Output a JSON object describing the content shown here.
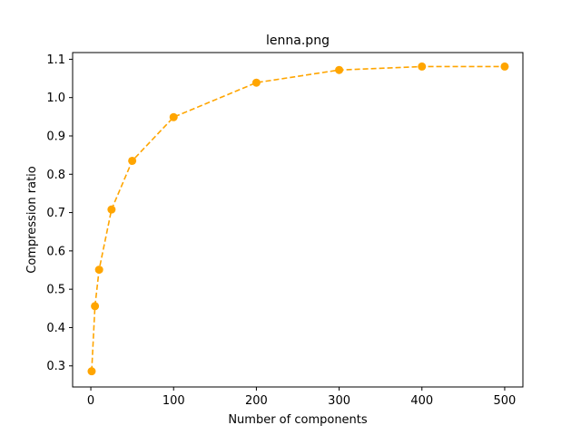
{
  "chart_data": {
    "type": "line",
    "title": "lenna.png",
    "xlabel": "Number of components",
    "ylabel": "Compression ratio",
    "xlim": [
      -22,
      522
    ],
    "ylim": [
      0.245,
      1.1175
    ],
    "xticks": [
      0,
      100,
      200,
      300,
      400,
      500
    ],
    "yticks": [
      0.3,
      0.4,
      0.5,
      0.6,
      0.7,
      0.8,
      0.9,
      1.0,
      1.1
    ],
    "grid": false,
    "series": [
      {
        "line_style": "dashed",
        "marker": "circle",
        "color": "#ffa500",
        "x": [
          1,
          5,
          10,
          25,
          50,
          100,
          200,
          300,
          400,
          500
        ],
        "y": [
          0.286,
          0.456,
          0.551,
          0.708,
          0.835,
          0.949,
          1.039,
          1.072,
          1.081,
          1.081
        ]
      }
    ]
  }
}
